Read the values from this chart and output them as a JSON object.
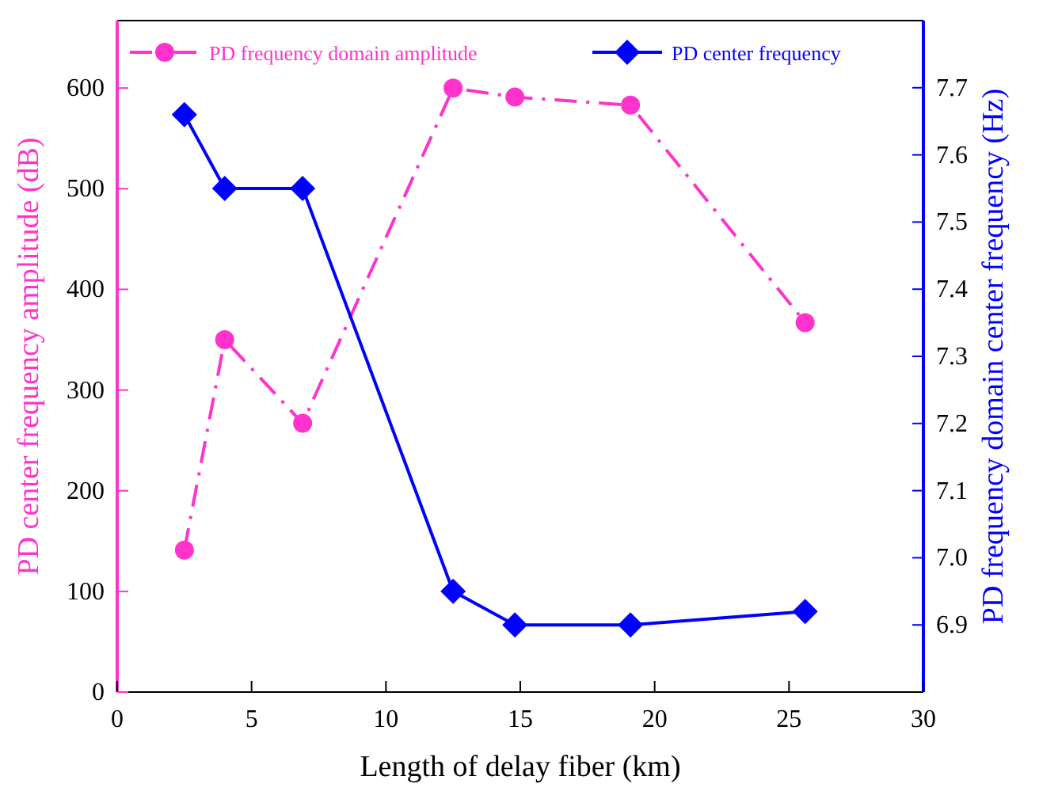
{
  "chart_data": {
    "type": "line",
    "xlabel": "Length of delay fiber (km)",
    "ylabel": "PD center frequency amplitude (dB)",
    "y2label": "PD frequency domain center frequency (Hz)",
    "x": [
      2.5,
      4,
      6.9,
      12.5,
      14.8,
      19.1,
      25.6
    ],
    "xlim": [
      0,
      30
    ],
    "xticks": [
      0,
      5,
      10,
      15,
      20,
      25,
      30
    ],
    "ylim": [
      0,
      667
    ],
    "yticks": [
      0,
      100,
      200,
      300,
      400,
      500,
      600
    ],
    "y2lim": [
      6.8,
      7.8
    ],
    "y2ticks": [
      6.9,
      {
        "value": 7,
        "label": "7.0"
      },
      7.1,
      7.2,
      7.3,
      7.4,
      7.5,
      7.6,
      7.7
    ],
    "legend": "top",
    "grid": false,
    "series": [
      {
        "name": "PD frequency domain amplitude",
        "color": "#ff33cc",
        "marker": "circle",
        "line_style": "dashdot",
        "values": [
          141,
          350,
          267,
          600,
          591,
          583,
          367
        ]
      },
      {
        "name": "PD center frequency",
        "color": "#0000ff",
        "marker": "diamond",
        "line_style": "solid",
        "axis": "y2",
        "values": [
          7.66,
          7.55,
          7.55,
          6.95,
          6.9,
          6.9,
          6.92
        ]
      }
    ]
  }
}
